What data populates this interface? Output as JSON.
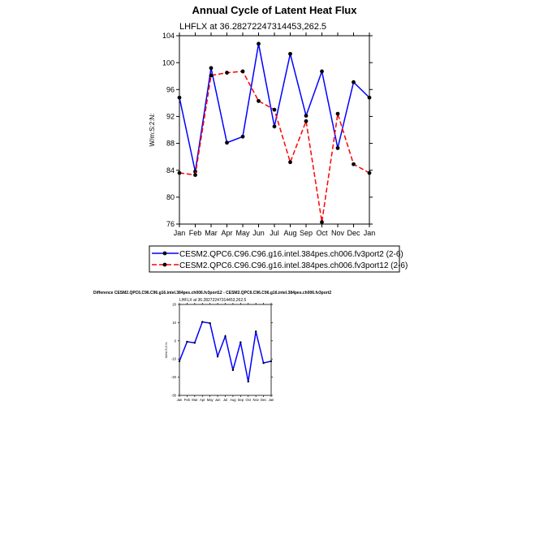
{
  "main_title": "Annual Cycle of Latent Heat Flux",
  "diff_title": "Difference CESM2.QPC6.C96.C96.g16.intel.384pes.ch006.fv3port12 - CESM2.QPC6.C96.C96.g16.intel.384pes.ch006.fv3port2",
  "colors": {
    "series1": "#0000ff",
    "series2": "#ff0000",
    "marker": "#000000"
  },
  "chart_data": [
    {
      "type": "line",
      "title": "Annual Cycle of Latent Heat Flux",
      "subtitle": "LHFLX at 36.28272247314453,262.5",
      "ylabel": "W/m:S:2:N:",
      "xlabel": "",
      "categories": [
        "Jan",
        "Feb",
        "Mar",
        "Apr",
        "May",
        "Jun",
        "Jul",
        "Aug",
        "Sep",
        "Oct",
        "Nov",
        "Dec",
        "Jan"
      ],
      "ylim": [
        76,
        104
      ],
      "yticks": [
        76,
        80,
        84,
        88,
        92,
        96,
        100,
        104
      ],
      "series": [
        {
          "name": "CESM2.QPC6.C96.C96.g16.intel.384pes.ch006.fv3port2 (2-6)",
          "style": "solid",
          "color": "#0000ff",
          "values": [
            94.8,
            83.8,
            99.2,
            88.1,
            89.0,
            102.8,
            90.5,
            101.3,
            92.1,
            98.7,
            87.3,
            97.1,
            94.8
          ]
        },
        {
          "name": "CESM2.QPC6.C96.C96.g16.intel.384pes.ch006.fv3port12 (2-6)",
          "style": "dashed",
          "color": "#ff0000",
          "values": [
            83.6,
            83.3,
            98.1,
            98.5,
            98.7,
            94.3,
            93.0,
            85.2,
            91.3,
            76.3,
            92.4,
            84.9,
            83.6
          ]
        }
      ],
      "legend": "below"
    },
    {
      "type": "line",
      "title": "Difference CESM2.QPC6.C96.C96.g16.intel.384pes.ch006.fv3port12 - CESM2.QPC6.C96.C96.g16.intel.384pes.ch006.fv3port2",
      "subtitle": "LHFLX at 36.28272247314453,262.5",
      "ylabel": "W/m:S:2:N:",
      "xlabel": "",
      "categories": [
        "Jan",
        "Feb",
        "Mar",
        "Apr",
        "May",
        "Jun",
        "Jul",
        "Aug",
        "Sep",
        "Oct",
        "Nov",
        "Dec",
        "Jan"
      ],
      "ylim": [
        -30,
        20
      ],
      "yticks": [
        -30,
        -20,
        -10,
        0,
        10,
        20
      ],
      "series": [
        {
          "style": "solid",
          "color": "#0000ff",
          "values": [
            -11.2,
            -0.5,
            -1.1,
            10.4,
            9.7,
            -8.5,
            2.5,
            -16.1,
            -0.8,
            -22.4,
            5.1,
            -12.2,
            -11.2
          ]
        }
      ]
    }
  ]
}
